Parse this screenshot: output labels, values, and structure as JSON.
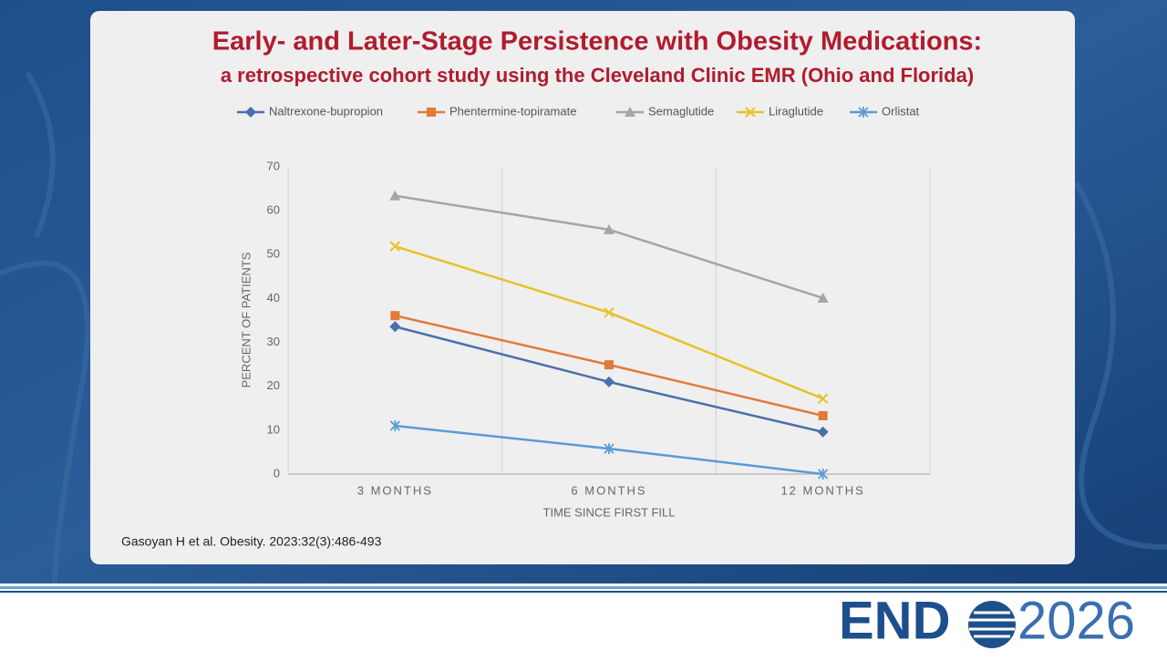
{
  "chart_data": {
    "type": "line",
    "title": "Early- and Later-Stage Persistence with Obesity Medications:",
    "subtitle": "a retrospective cohort study using the Cleveland Clinic EMR (Ohio and Florida)",
    "x_label": "TIME SINCE FIRST FILL",
    "y_label": "PERCENT OF PATIENTS",
    "categories": [
      "3 MONTHS",
      "6 MONTHS",
      "12 MONTHS"
    ],
    "series": [
      {
        "name": "Naltrexone-bupropion",
        "color": "#4a6fab",
        "marker": "diamond",
        "values": [
          33.6,
          21.0,
          9.6
        ]
      },
      {
        "name": "Phentermine-topiramate",
        "color": "#e07b39",
        "marker": "square",
        "values": [
          36.1,
          24.9,
          13.3
        ]
      },
      {
        "name": "Semaglutide",
        "color": "#a5a5a5",
        "marker": "triangle",
        "values": [
          63.4,
          55.7,
          40.1
        ]
      },
      {
        "name": "Liraglutide",
        "color": "#e6c229",
        "marker": "x",
        "values": [
          51.9,
          36.8,
          17.2
        ]
      },
      {
        "name": "Orlistat",
        "color": "#5b9bd5",
        "marker": "asterisk",
        "values": [
          11.0,
          5.8,
          0
        ]
      }
    ],
    "ylim": [
      0,
      70
    ],
    "yticks": [
      0,
      10,
      20,
      30,
      40,
      50,
      60,
      70
    ],
    "grid": "vertical-category",
    "legend": "top"
  },
  "citation": "Gasoyan H et al.  Obesity. 2023:32(3):486-493",
  "logo": {
    "left": "END",
    "right": "2026"
  }
}
